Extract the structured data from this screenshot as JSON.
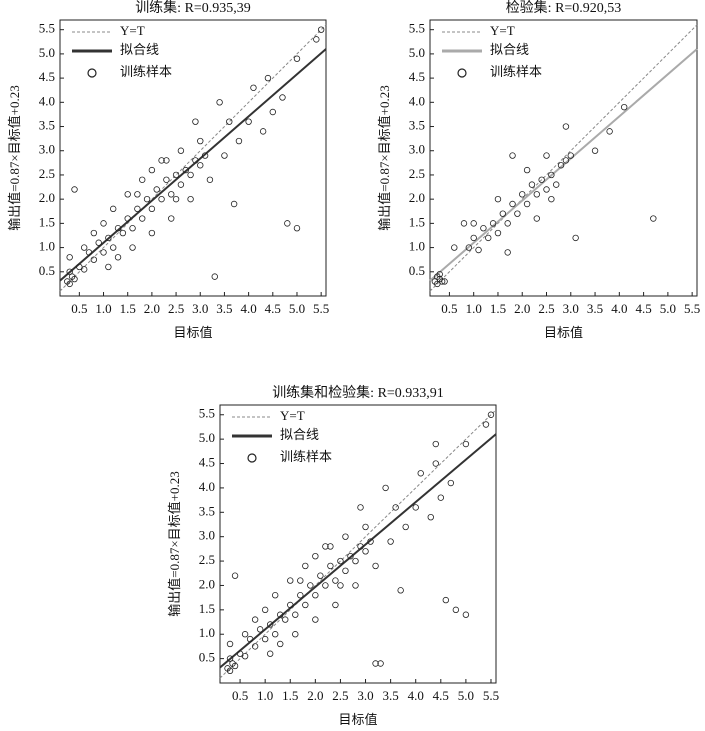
{
  "chart_data": [
    {
      "type": "scatter",
      "title": "训练集: R=0.935,39",
      "xlabel": "目标值",
      "ylabel": "输出值=0.87×目标值+0.23",
      "xlim": [
        0.1,
        5.6
      ],
      "ylim": [
        0,
        5.7
      ],
      "xticks": [
        0.5,
        {
          "value": 1,
          "label": "1.0"
        },
        1.5,
        {
          "value": 2,
          "label": "2.0"
        },
        2.5,
        {
          "value": 3,
          "label": "3.0"
        },
        3.5,
        {
          "value": 4,
          "label": "4.0"
        },
        4.5,
        {
          "value": 5,
          "label": "5.0"
        },
        5.5
      ],
      "yticks": [
        0.5,
        {
          "value": 1,
          "label": "1.0"
        },
        1.5,
        {
          "value": 2,
          "label": "2.0"
        },
        2.5,
        {
          "value": 3,
          "label": "3.0"
        },
        3.5,
        {
          "value": 4,
          "label": "4.0"
        },
        4.5,
        {
          "value": 5,
          "label": "5.0"
        },
        5.5
      ],
      "series": [
        {
          "name": "Y=T",
          "kind": "line",
          "dash": true,
          "color": "#888888",
          "x": [
            0.1,
            5.6
          ],
          "values": [
            0.1,
            5.6
          ]
        },
        {
          "name": "拟合线",
          "kind": "line",
          "dash": false,
          "color": "#333333",
          "x": [
            0.1,
            5.6
          ],
          "values": [
            0.317,
            5.102
          ]
        },
        {
          "name": "训练样本",
          "kind": "points",
          "color": "#222222",
          "x": [
            0.25,
            0.3,
            0.35,
            0.3,
            0.4,
            0.5,
            0.6,
            0.7,
            0.8,
            0.9,
            1.0,
            1.1,
            1.2,
            1.3,
            1.4,
            1.5,
            1.6,
            1.7,
            1.8,
            1.9,
            2.0,
            2.1,
            2.2,
            2.3,
            2.4,
            2.5,
            2.6,
            2.7,
            2.8,
            2.9,
            3.0,
            3.1,
            1.0,
            1.2,
            1.5,
            1.8,
            2.0,
            2.3,
            2.6,
            0.8,
            1.3,
            1.6,
            2.0,
            2.4,
            2.8,
            3.2,
            3.5,
            3.8,
            4.0,
            4.3,
            4.5,
            4.7,
            5.0,
            5.5,
            5.4,
            4.8,
            5.0,
            3.3,
            0.4,
            3.6,
            4.1,
            3.4,
            2.9,
            1.1,
            0.6,
            2.2,
            1.7,
            2.5,
            3.0,
            4.4,
            3.7,
            0.3
          ],
          "values": [
            0.3,
            0.25,
            0.4,
            0.5,
            0.35,
            0.6,
            0.55,
            0.9,
            0.75,
            1.1,
            0.9,
            1.2,
            1.0,
            1.4,
            1.3,
            1.6,
            1.4,
            1.8,
            1.6,
            2.0,
            1.8,
            2.2,
            2.0,
            2.4,
            2.1,
            2.5,
            2.3,
            2.6,
            2.5,
            2.8,
            2.7,
            2.9,
            1.5,
            1.8,
            2.1,
            2.4,
            2.6,
            2.8,
            3.0,
            1.3,
            0.8,
            1.0,
            1.3,
            1.6,
            2.0,
            2.4,
            2.9,
            3.2,
            3.6,
            3.4,
            3.8,
            4.1,
            4.9,
            5.5,
            5.3,
            1.5,
            1.4,
            0.4,
            2.2,
            3.6,
            4.3,
            4.0,
            3.6,
            0.6,
            1.0,
            2.8,
            2.1,
            2.0,
            3.2,
            4.5,
            1.9,
            0.8
          ]
        }
      ]
    },
    {
      "type": "scatter",
      "title": "检验集: R=0.920,53",
      "xlabel": "目标值",
      "ylabel": "输出值=0.87×目标值+0.23",
      "xlim": [
        0.1,
        5.6
      ],
      "ylim": [
        0,
        5.7
      ],
      "xticks": [
        0.5,
        {
          "value": 1,
          "label": "1.0"
        },
        1.5,
        {
          "value": 2,
          "label": "2.0"
        },
        2.5,
        {
          "value": 3,
          "label": "3.0"
        },
        3.5,
        {
          "value": 4,
          "label": "4.0"
        },
        4.5,
        {
          "value": 5,
          "label": "5.0"
        },
        5.5
      ],
      "yticks": [
        0.5,
        {
          "value": 1,
          "label": "1.0"
        },
        1.5,
        {
          "value": 2,
          "label": "2.0"
        },
        2.5,
        {
          "value": 3,
          "label": "3.0"
        },
        3.5,
        {
          "value": 4,
          "label": "4.0"
        },
        4.5,
        {
          "value": 5,
          "label": "5.0"
        },
        5.5
      ],
      "series": [
        {
          "name": "Y=T",
          "kind": "line",
          "dash": true,
          "color": "#888888",
          "x": [
            0.1,
            5.6
          ],
          "values": [
            0.1,
            5.6
          ]
        },
        {
          "name": "拟合线",
          "kind": "line",
          "dash": false,
          "color": "#aaaaaa",
          "x": [
            0.1,
            5.6
          ],
          "values": [
            0.317,
            5.102
          ]
        },
        {
          "name": "训练样本",
          "kind": "points",
          "color": "#222222",
          "x": [
            0.2,
            0.25,
            0.3,
            0.35,
            0.3,
            0.4,
            0.25,
            0.9,
            1.0,
            1.1,
            1.2,
            1.3,
            1.4,
            1.5,
            1.6,
            1.7,
            1.8,
            1.9,
            2.0,
            2.1,
            2.2,
            2.3,
            2.4,
            2.5,
            2.6,
            2.7,
            2.8,
            2.9,
            3.0,
            1.0,
            0.8,
            1.5,
            2.1,
            2.5,
            2.9,
            3.5,
            3.8,
            4.1,
            4.7,
            3.1,
            1.7,
            2.3,
            0.6,
            1.8,
            2.6
          ],
          "values": [
            0.3,
            0.25,
            0.35,
            0.3,
            0.45,
            0.3,
            0.4,
            1.0,
            1.2,
            0.95,
            1.4,
            1.2,
            1.5,
            1.3,
            1.7,
            1.5,
            1.9,
            1.7,
            2.1,
            1.9,
            2.3,
            2.1,
            2.4,
            2.2,
            2.5,
            2.3,
            2.7,
            2.8,
            2.9,
            1.5,
            1.5,
            2.0,
            2.6,
            2.9,
            3.5,
            3.0,
            3.4,
            3.9,
            1.6,
            1.2,
            0.9,
            1.6,
            1.0,
            2.9,
            2.0
          ]
        }
      ]
    },
    {
      "type": "scatter",
      "title": "训练集和检验集: R=0.933,91",
      "xlabel": "目标值",
      "ylabel": "输出值=0.87×目标值+0.23",
      "xlim": [
        0.1,
        5.6
      ],
      "ylim": [
        0,
        5.7
      ],
      "xticks": [
        0.5,
        {
          "value": 1,
          "label": "1.0"
        },
        1.5,
        {
          "value": 2,
          "label": "2.0"
        },
        2.5,
        {
          "value": 3,
          "label": "3.0"
        },
        3.5,
        {
          "value": 4,
          "label": "4.0"
        },
        4.5,
        {
          "value": 5,
          "label": "5.0"
        },
        5.5
      ],
      "yticks": [
        0.5,
        {
          "value": 1,
          "label": "1.0"
        },
        1.5,
        {
          "value": 2,
          "label": "2.0"
        },
        2.5,
        {
          "value": 3,
          "label": "3.0"
        },
        3.5,
        {
          "value": 4,
          "label": "4.0"
        },
        4.5,
        {
          "value": 5,
          "label": "5.0"
        },
        5.5
      ],
      "series": [
        {
          "name": "Y=T",
          "kind": "line",
          "dash": true,
          "color": "#888888",
          "x": [
            0.1,
            5.6
          ],
          "values": [
            0.1,
            5.6
          ]
        },
        {
          "name": "拟合线",
          "kind": "line",
          "dash": false,
          "color": "#333333",
          "x": [
            0.1,
            5.6
          ],
          "values": [
            0.317,
            5.102
          ]
        },
        {
          "name": "训练样本",
          "kind": "points",
          "color": "#222222",
          "x": [
            0.25,
            0.3,
            0.35,
            0.3,
            0.4,
            0.5,
            0.6,
            0.7,
            0.8,
            0.9,
            1.0,
            1.1,
            1.2,
            1.3,
            1.4,
            1.5,
            1.6,
            1.7,
            1.8,
            1.9,
            2.0,
            2.1,
            2.2,
            2.3,
            2.4,
            2.5,
            2.6,
            2.7,
            2.8,
            2.9,
            3.0,
            3.1,
            1.0,
            1.2,
            1.5,
            1.8,
            2.0,
            2.3,
            2.6,
            0.8,
            1.3,
            1.6,
            2.0,
            2.4,
            2.8,
            3.2,
            3.5,
            3.8,
            4.0,
            4.3,
            4.5,
            4.7,
            5.0,
            5.5,
            5.4,
            4.8,
            5.0,
            3.3,
            0.4,
            3.6,
            4.1,
            3.4,
            2.9,
            1.1,
            0.6,
            2.2,
            1.7,
            2.5,
            3.0,
            4.4,
            3.7,
            0.3,
            4.6,
            4.4,
            3.2
          ],
          "values": [
            0.3,
            0.25,
            0.4,
            0.5,
            0.35,
            0.6,
            0.55,
            0.9,
            0.75,
            1.1,
            0.9,
            1.2,
            1.0,
            1.4,
            1.3,
            1.6,
            1.4,
            1.8,
            1.6,
            2.0,
            1.8,
            2.2,
            2.0,
            2.4,
            2.1,
            2.5,
            2.3,
            2.6,
            2.5,
            2.8,
            2.7,
            2.9,
            1.5,
            1.8,
            2.1,
            2.4,
            2.6,
            2.8,
            3.0,
            1.3,
            0.8,
            1.0,
            1.3,
            1.6,
            2.0,
            2.4,
            2.9,
            3.2,
            3.6,
            3.4,
            3.8,
            4.1,
            4.9,
            5.5,
            5.3,
            1.5,
            1.4,
            0.4,
            2.2,
            3.6,
            4.3,
            4.0,
            3.6,
            0.6,
            1.0,
            2.8,
            2.1,
            2.0,
            3.2,
            4.5,
            1.9,
            0.8,
            1.7,
            4.9,
            0.4
          ]
        }
      ]
    }
  ]
}
